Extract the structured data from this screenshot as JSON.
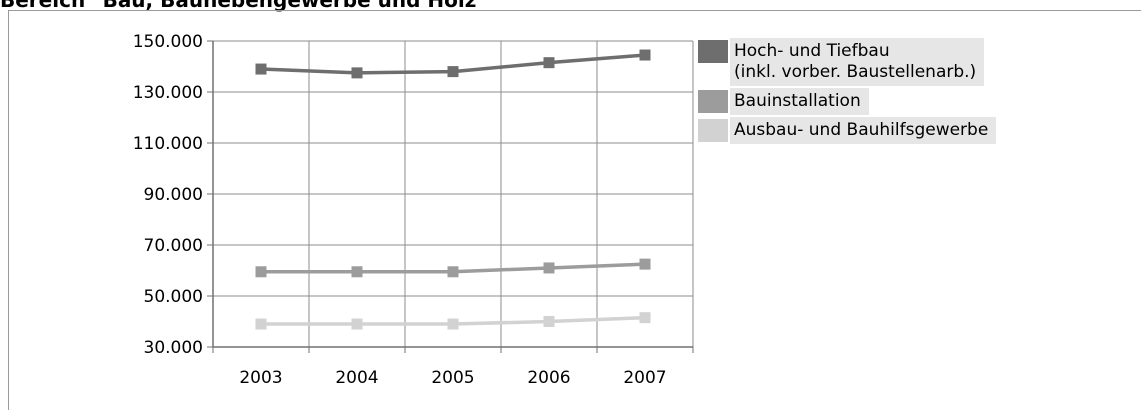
{
  "title": "Bereich \"Bau, Baunebengewerbe und Holz\"",
  "chart_data": {
    "type": "line",
    "categories": [
      "2003",
      "2004",
      "2005",
      "2006",
      "2007"
    ],
    "ylim": [
      30000,
      150000
    ],
    "y_ticks": [
      150000,
      130000,
      110000,
      90000,
      70000,
      50000,
      30000
    ],
    "y_tick_labels": [
      "150.000",
      "130.000",
      "110.000",
      "90.000",
      "70.000",
      "50.000",
      "30.000"
    ],
    "grid": true,
    "legend_position": "right",
    "series": [
      {
        "name": "Hoch- und Tiefbau\n(inkl. vorber. Baustellenarb.)",
        "values": [
          139000,
          137500,
          138000,
          141500,
          144500
        ],
        "color": "#6e6e6e"
      },
      {
        "name": "Bauinstallation",
        "values": [
          59500,
          59500,
          59500,
          61000,
          62500
        ],
        "color": "#9c9c9c"
      },
      {
        "name": "Ausbau- und Bauhilfsgewerbe",
        "values": [
          39000,
          39000,
          39000,
          40000,
          41500
        ],
        "color": "#d2d2d2"
      }
    ]
  }
}
